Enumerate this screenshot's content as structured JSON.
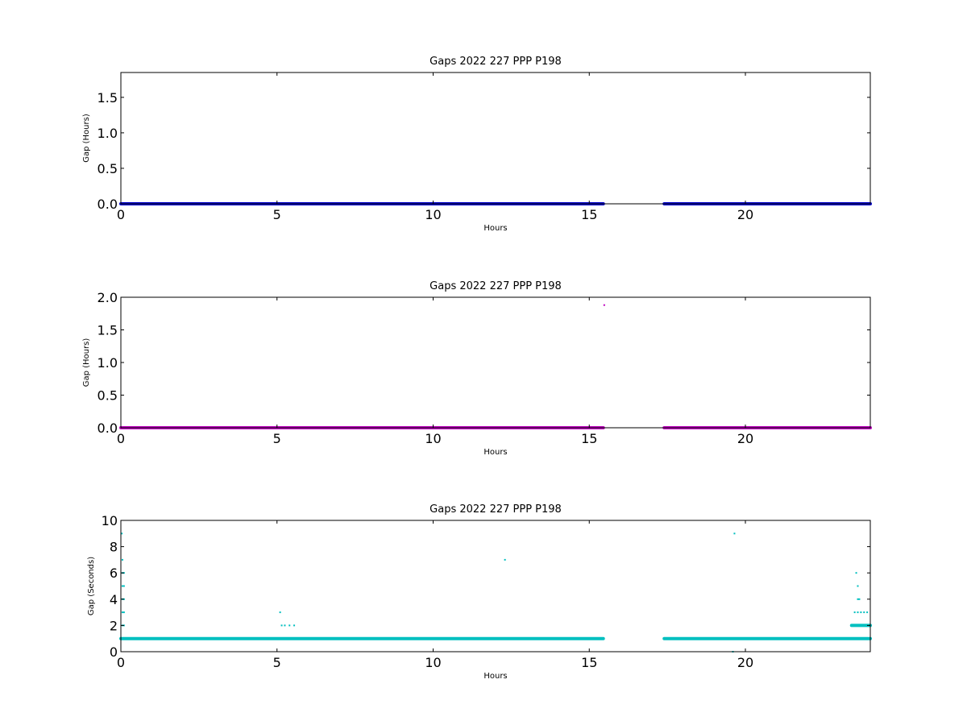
{
  "chart_data": [
    {
      "type": "scatter",
      "title": "Gaps 2022 227 PPP  P198",
      "xlabel": "Hours",
      "ylabel": "Gap (Hours)",
      "xlim": [
        0,
        24
      ],
      "ylim": [
        0,
        1.85
      ],
      "xticks": [
        "0",
        "5",
        "10",
        "15",
        "20"
      ],
      "yticks": [
        "0.0",
        "0.5",
        "1.0",
        "1.5"
      ],
      "grid": false,
      "color": "#0000cc",
      "segments": [
        [
          0,
          15.45,
          0
        ],
        [
          17.4,
          24,
          0
        ]
      ],
      "points": []
    },
    {
      "type": "scatter",
      "title": "Gaps 2022 227 PPP  P198",
      "xlabel": "Hours",
      "ylabel": "Gap (Hours)",
      "xlim": [
        0,
        24
      ],
      "ylim": [
        0,
        2.0
      ],
      "xticks": [
        "0",
        "5",
        "10",
        "15",
        "20"
      ],
      "yticks": [
        "0.0",
        "0.5",
        "1.0",
        "1.5",
        "2.0"
      ],
      "grid": false,
      "color": "#bf00bf",
      "segments": [
        [
          0,
          15.45,
          0
        ],
        [
          17.4,
          24,
          0
        ]
      ],
      "points": [
        [
          15.48,
          1.88
        ]
      ]
    },
    {
      "type": "scatter",
      "title": "Gaps 2022 227 PPP  P198",
      "xlabel": "Hours",
      "ylabel": "Gap (Seconds)",
      "xlim": [
        0,
        24
      ],
      "ylim": [
        0,
        10
      ],
      "xticks": [
        "0",
        "5",
        "10",
        "15",
        "20"
      ],
      "yticks": [
        "0",
        "2",
        "4",
        "6",
        "8",
        "10"
      ],
      "grid": false,
      "color": "#00bfbf",
      "segments": [
        [
          0,
          15.45,
          1
        ],
        [
          17.4,
          24,
          1
        ],
        [
          23.4,
          24,
          2
        ]
      ],
      "points": [
        [
          0.03,
          9
        ],
        [
          0.05,
          7
        ],
        [
          0.05,
          6
        ],
        [
          0.1,
          6
        ],
        [
          0.05,
          5
        ],
        [
          0.1,
          5
        ],
        [
          0.05,
          4
        ],
        [
          0.1,
          4
        ],
        [
          0.05,
          3
        ],
        [
          0.1,
          3
        ],
        [
          0.05,
          2
        ],
        [
          0.1,
          2
        ],
        [
          5.1,
          3
        ],
        [
          5.15,
          2
        ],
        [
          5.25,
          2
        ],
        [
          5.4,
          2
        ],
        [
          5.55,
          2
        ],
        [
          12.3,
          7
        ],
        [
          19.65,
          9
        ],
        [
          19.6,
          0
        ],
        [
          23.55,
          6
        ],
        [
          23.6,
          5
        ],
        [
          23.6,
          4
        ],
        [
          23.65,
          4
        ],
        [
          23.5,
          3
        ],
        [
          23.6,
          3
        ],
        [
          23.7,
          3
        ],
        [
          23.8,
          3
        ],
        [
          23.9,
          3
        ]
      ]
    }
  ]
}
